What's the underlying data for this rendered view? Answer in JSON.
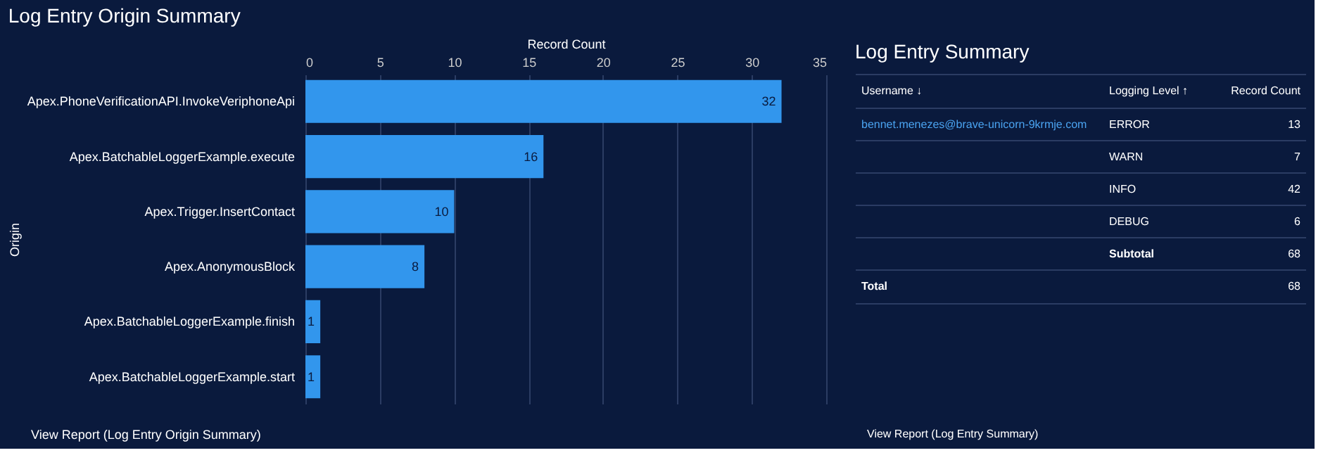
{
  "chart_data": [
    {
      "type": "bar",
      "orientation": "horizontal",
      "title": "Log Entry Origin Summary",
      "xlabel": "Record Count",
      "ylabel": "Origin",
      "categories": [
        "Apex.PhoneVerificationAPI.InvokeVeriphoneApi",
        "Apex.BatchableLoggerExample.execute",
        "Apex.Trigger.InsertContact",
        "Apex.AnonymousBlock",
        "Apex.BatchableLoggerExample.finish",
        "Apex.BatchableLoggerExample.start"
      ],
      "values": [
        32,
        16,
        10,
        8,
        1,
        1
      ],
      "color": "#3296ed",
      "xlim": [
        0,
        35
      ],
      "xticks": [
        0,
        5,
        10,
        15,
        20,
        25,
        30,
        35
      ],
      "grid": "x",
      "data_labels": true,
      "annotations": [
        "View Report (Log Entry Origin Summary)"
      ]
    },
    {
      "type": "other",
      "title": "Log Entry Summary",
      "annotations": [
        "Username ↓",
        "Logging Level ↑",
        "Record Count",
        "bennet.menezes@brave-unicorn-9krmje.com",
        "ERROR",
        "13",
        "WARN",
        "7",
        "INFO",
        "42",
        "DEBUG",
        "6",
        "Subtotal",
        "68",
        "Total",
        "68",
        "View Report (Log Entry Summary)"
      ]
    }
  ]
}
